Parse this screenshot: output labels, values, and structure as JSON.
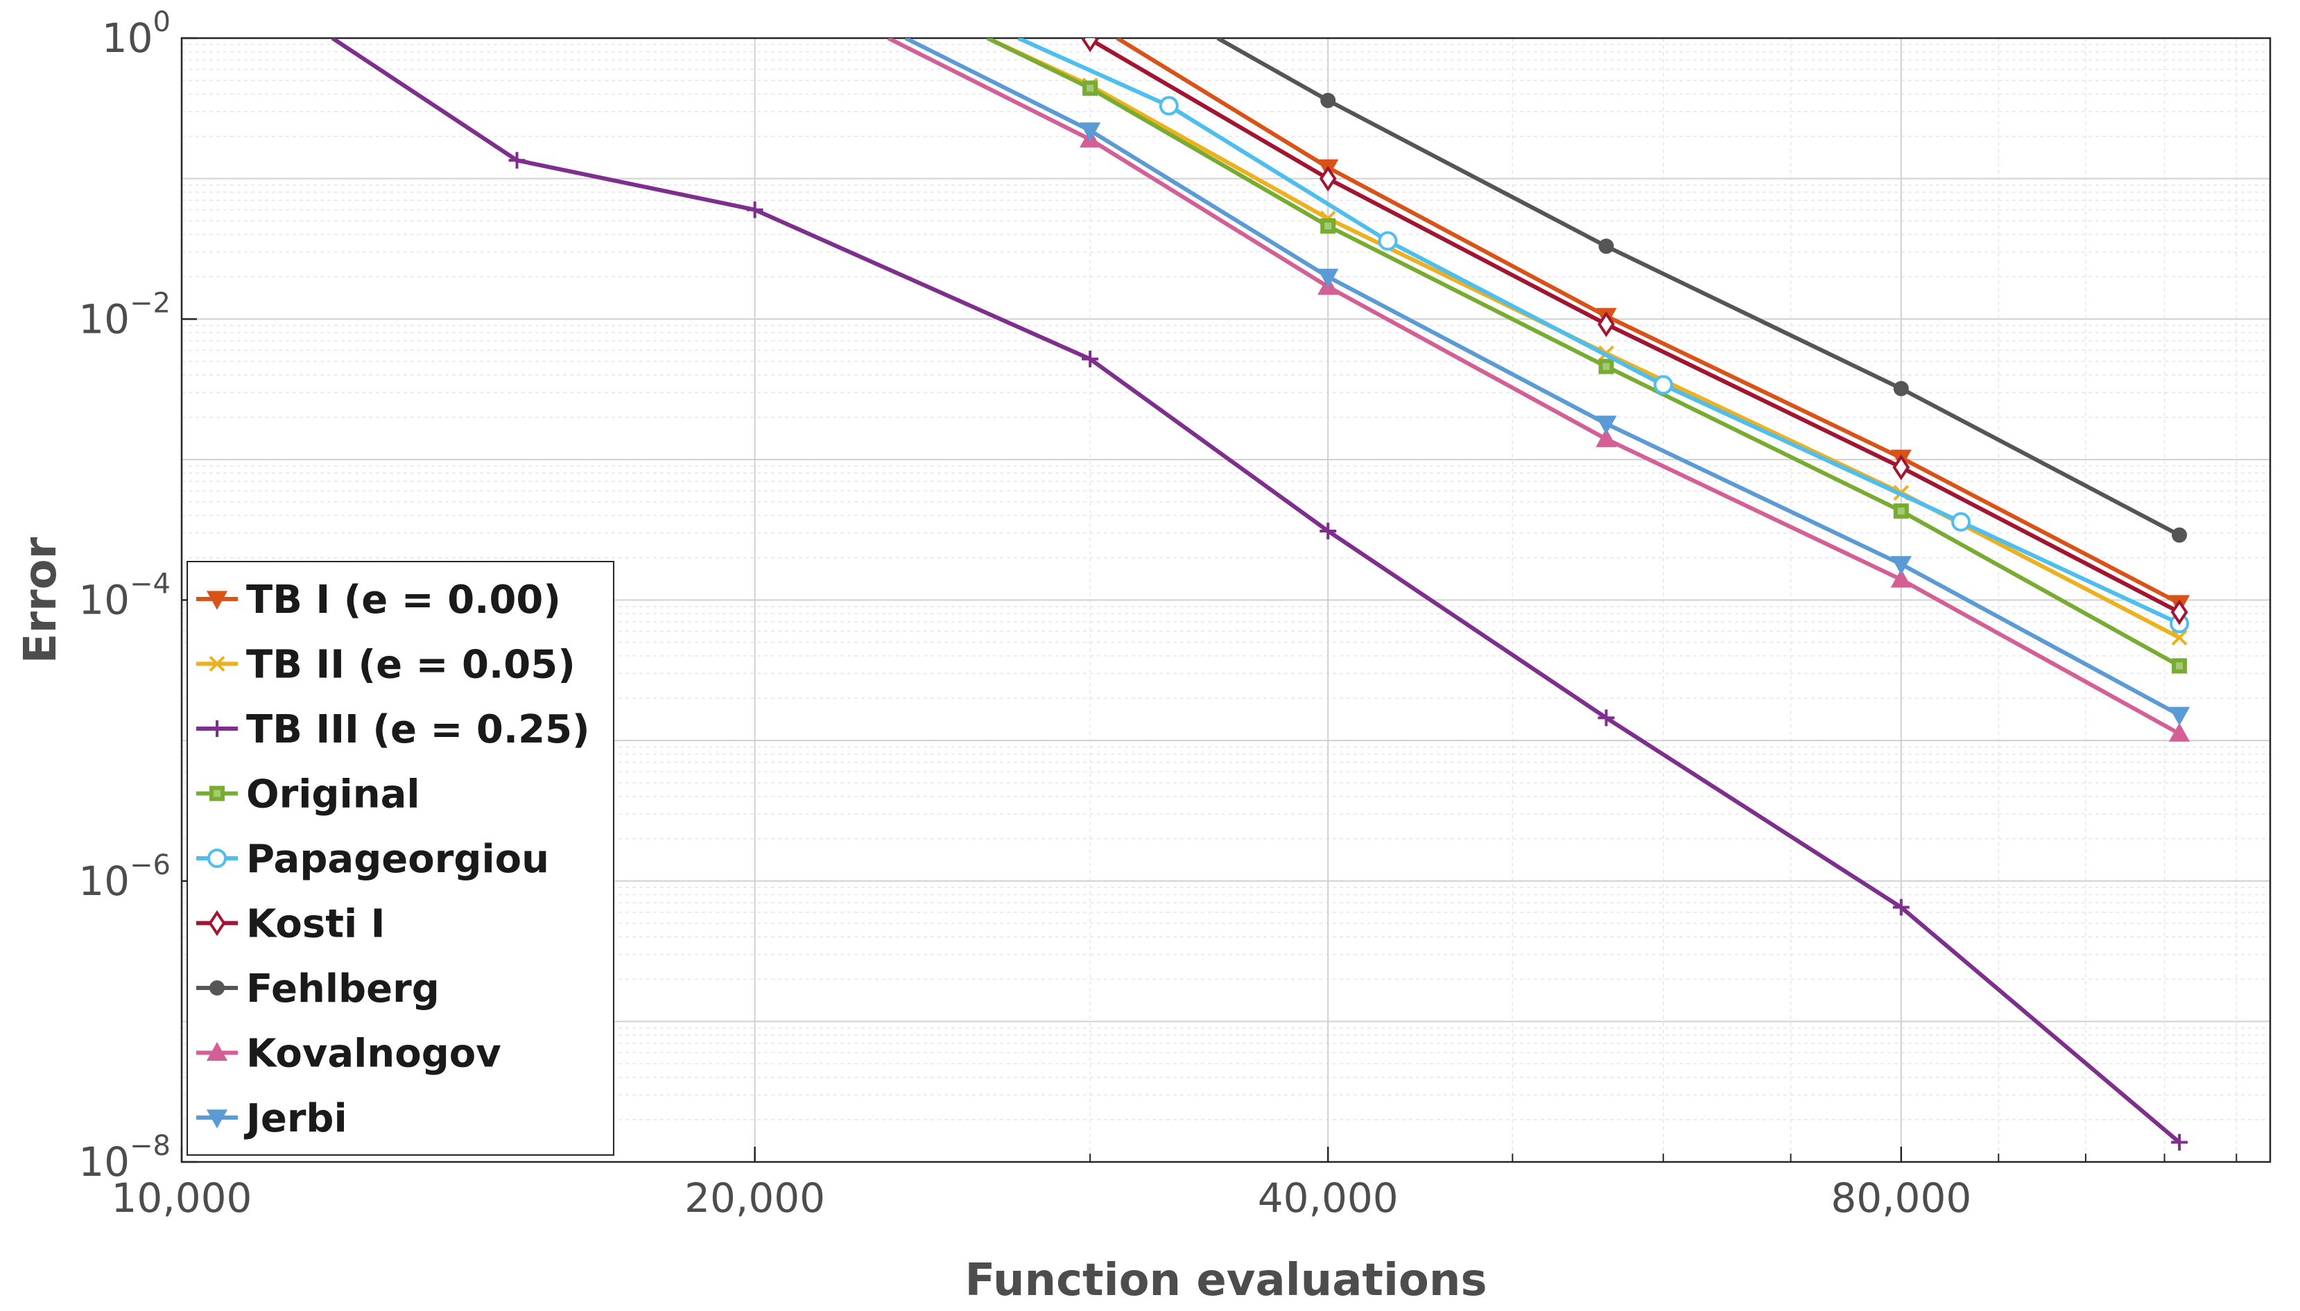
{
  "chart_data": {
    "type": "line",
    "title": "",
    "xlabel": "Function evaluations",
    "ylabel": "Error",
    "xscale": "log",
    "yscale": "log",
    "xlim": [
      10000,
      125000
    ],
    "ylim": [
      1e-08,
      1
    ],
    "xticks": [
      {
        "value": 10000,
        "label": "10,000"
      },
      {
        "value": 20000,
        "label": "20,000"
      },
      {
        "value": 40000,
        "label": "40,000"
      },
      {
        "value": 80000,
        "label": "80,000"
      }
    ],
    "yticks": [
      {
        "value": 1,
        "base": "10",
        "exp": "0"
      },
      {
        "value": 0.01,
        "base": "10",
        "exp": "−2"
      },
      {
        "value": 0.0001,
        "base": "10",
        "exp": "−4"
      },
      {
        "value": 1e-06,
        "base": "10",
        "exp": "−6"
      },
      {
        "value": 1e-08,
        "base": "10",
        "exp": "−8"
      }
    ],
    "grid": true,
    "legend_position": "bottom-left",
    "series": [
      {
        "name": "TB I (e = 0.00)",
        "color": "#d95319",
        "marker": "triangle-down",
        "x": [
          31000,
          40000,
          56000,
          80000,
          112000
        ],
        "y": [
          1.0,
          0.12,
          0.0105,
          0.00103,
          9.5e-05
        ]
      },
      {
        "name": "TB II (e = 0.05)",
        "color": "#edb120",
        "marker": "x",
        "x": [
          26500,
          30000,
          40000,
          56000,
          80000,
          112000
        ],
        "y": [
          1.0,
          0.46,
          0.052,
          0.0057,
          0.00058,
          5.4e-05
        ]
      },
      {
        "name": "TB III (e = 0.25)",
        "color": "#7e2f8e",
        "marker": "plus",
        "x": [
          12000,
          15000,
          20000,
          30000,
          40000,
          56000,
          80000,
          112000
        ],
        "y": [
          1.0,
          0.135,
          0.06,
          0.0052,
          0.00031,
          1.45e-05,
          6.5e-07,
          1.38e-08
        ]
      },
      {
        "name": "Original",
        "color": "#77ac30",
        "marker": "square",
        "x": [
          26500,
          30000,
          40000,
          56000,
          80000,
          112000
        ],
        "y": [
          1.0,
          0.44,
          0.046,
          0.0046,
          0.00043,
          3.4e-05
        ]
      },
      {
        "name": "Papageorgiou",
        "color": "#4dbeee",
        "marker": "circle",
        "x": [
          27500,
          33000,
          43000,
          60000,
          86000,
          112000
        ],
        "y": [
          1.0,
          0.33,
          0.036,
          0.0034,
          0.00036,
          6.8e-05
        ]
      },
      {
        "name": "Kosti I",
        "color": "#a2142f",
        "marker": "diamond",
        "x": [
          30000,
          40000,
          56000,
          80000,
          112000
        ],
        "y": [
          0.98,
          0.1,
          0.0092,
          0.00088,
          8.2e-05
        ]
      },
      {
        "name": "Fehlberg",
        "color": "#555555",
        "marker": "dot",
        "x": [
          35000,
          40000,
          56000,
          80000,
          112000
        ],
        "y": [
          1.0,
          0.36,
          0.033,
          0.0032,
          0.00029
        ]
      },
      {
        "name": "Kovalnogov",
        "color": "#d35f95",
        "marker": "triangle-up",
        "x": [
          23500,
          30000,
          40000,
          56000,
          80000,
          112000
        ],
        "y": [
          1.0,
          0.19,
          0.017,
          0.0014,
          0.00014,
          1.12e-05
        ]
      },
      {
        "name": "Jerbi",
        "color": "#5b9bd5",
        "marker": "triangle-down",
        "x": [
          24000,
          30000,
          40000,
          56000,
          80000,
          112000
        ],
        "y": [
          1.0,
          0.22,
          0.02,
          0.0018,
          0.00018,
          1.52e-05
        ]
      }
    ]
  }
}
